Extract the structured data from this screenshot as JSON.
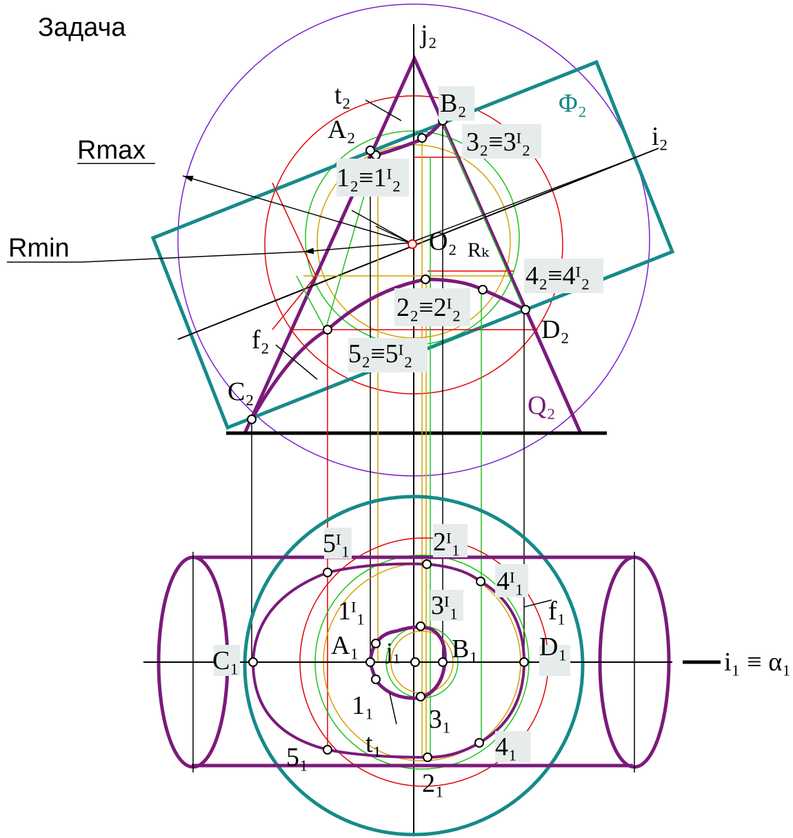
{
  "title": "Задача",
  "labels": {
    "j2": "j₂",
    "t2": "t₂",
    "B2": "B₂",
    "Phi2": "Φ₂",
    "A2": "A₂",
    "p3_2": "3₂≡3ᴵ₂",
    "i2": "i₂",
    "Rmax": "Rmax",
    "p1_2": "1₂≡1ᴵ₂",
    "Rmin": "Rmin",
    "O2": "O₂",
    "Rk": "Rₖ",
    "p4_2": "4₂≡4ᴵ₂",
    "p2_2": "2₂≡2ᴵ₂",
    "D2": "D₂",
    "f2": "f₂",
    "p5_2": "5₂≡5ᴵ₂",
    "C2": "C₂",
    "Q2": "Q₂",
    "p5I1": "5ᴵ₁",
    "p2I1": "2ᴵ₁",
    "p4I1": "4ᴵ₁",
    "p3I1": "3ᴵ₁",
    "p1I1": "1ᴵ₁",
    "f1": "f₁",
    "C1": "C₁",
    "A1": "A₁",
    "j1": "j₁",
    "B1": "B₁",
    "D1": "D₁",
    "i1": "i₁ ≡ α₁",
    "p1_1": "1₁",
    "p3_1": "3₁",
    "t1": "t₁",
    "p5_1": "5₁",
    "p4_1": "4₁",
    "p2_1": "2₁"
  }
}
